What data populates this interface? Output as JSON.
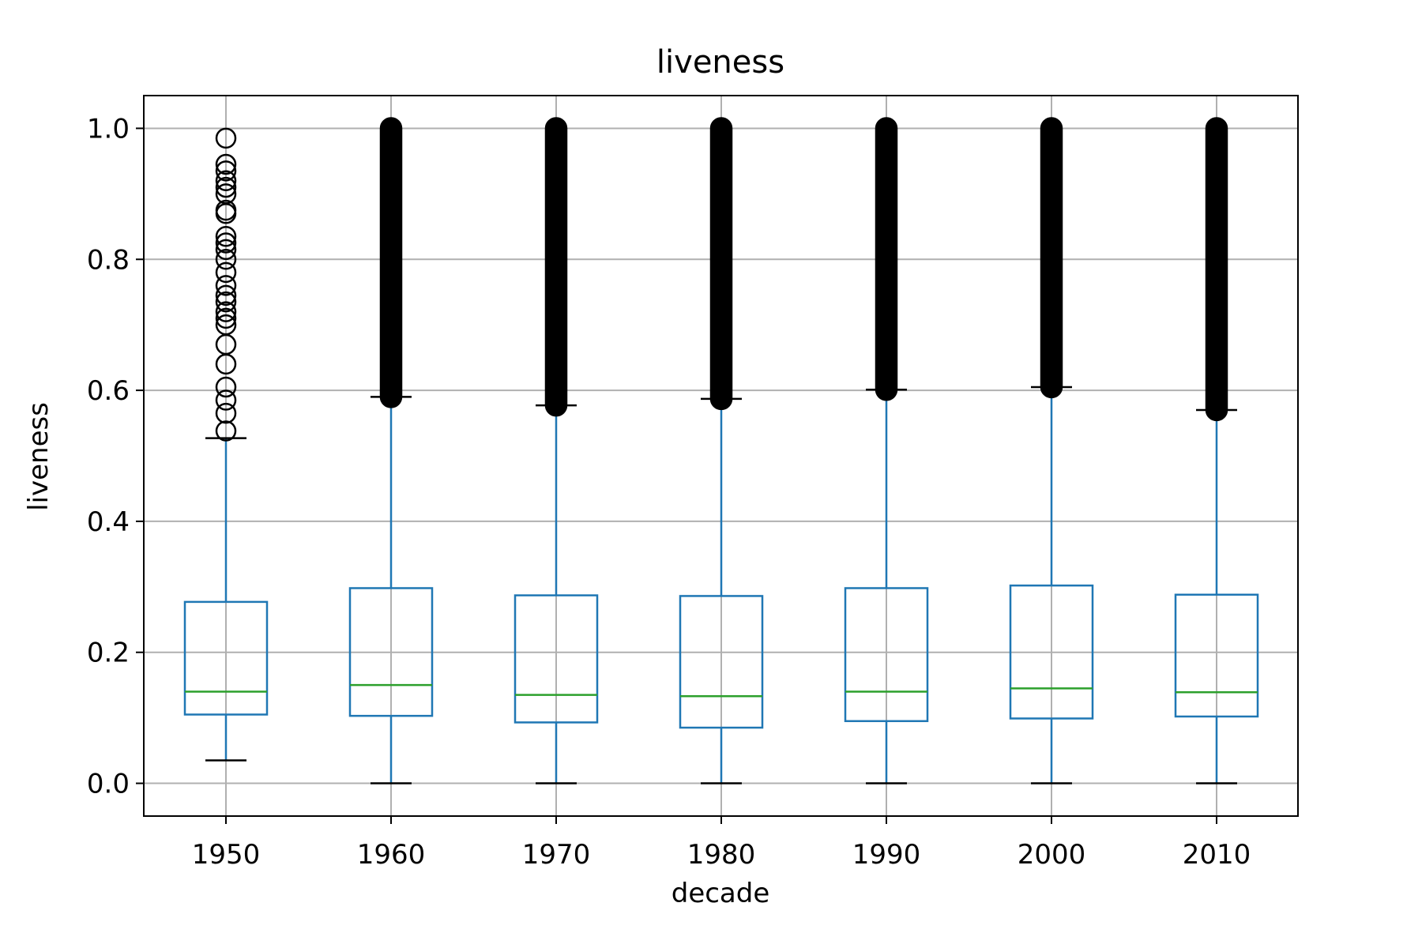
{
  "chart_data": {
    "type": "boxplot",
    "title": "liveness",
    "xlabel": "decade",
    "ylabel": "liveness",
    "ylim": [
      -0.05,
      1.05
    ],
    "yticks": [
      "0.0",
      "0.2",
      "0.4",
      "0.6",
      "0.8",
      "1.0"
    ],
    "categories": [
      "1950",
      "1960",
      "1970",
      "1980",
      "1990",
      "2000",
      "2010"
    ],
    "grid": true,
    "colors": {
      "box": "#1f77b4",
      "median": "#2ca02c",
      "whisker_cap": "#000000",
      "grid": "#b0b0b0",
      "flier": "#000000"
    },
    "boxes": [
      {
        "decade": "1950",
        "whislo": 0.035,
        "q1": 0.105,
        "median": 0.14,
        "q3": 0.277,
        "whishi": 0.527,
        "fliers": [
          0.538,
          0.565,
          0.585,
          0.605,
          0.64,
          0.67,
          0.7,
          0.71,
          0.72,
          0.735,
          0.745,
          0.76,
          0.78,
          0.8,
          0.815,
          0.825,
          0.835,
          0.87,
          0.875,
          0.9,
          0.91,
          0.92,
          0.935,
          0.945,
          0.985
        ],
        "flier_range": null
      },
      {
        "decade": "1960",
        "whislo": 0.0,
        "q1": 0.103,
        "median": 0.15,
        "q3": 0.298,
        "whishi": 0.59,
        "fliers": [],
        "flier_range": [
          0.59,
          1.0
        ]
      },
      {
        "decade": "1970",
        "whislo": 0.0,
        "q1": 0.093,
        "median": 0.135,
        "q3": 0.287,
        "whishi": 0.577,
        "fliers": [],
        "flier_range": [
          0.577,
          1.0
        ]
      },
      {
        "decade": "1980",
        "whislo": 0.0,
        "q1": 0.085,
        "median": 0.133,
        "q3": 0.286,
        "whishi": 0.587,
        "fliers": [],
        "flier_range": [
          0.587,
          1.0
        ]
      },
      {
        "decade": "1990",
        "whislo": 0.0,
        "q1": 0.095,
        "median": 0.14,
        "q3": 0.298,
        "whishi": 0.601,
        "fliers": [],
        "flier_range": [
          0.601,
          1.0
        ]
      },
      {
        "decade": "2000",
        "whislo": 0.0,
        "q1": 0.099,
        "median": 0.145,
        "q3": 0.302,
        "whishi": 0.605,
        "fliers": [],
        "flier_range": [
          0.605,
          1.0
        ]
      },
      {
        "decade": "2010",
        "whislo": 0.0,
        "q1": 0.102,
        "median": 0.139,
        "q3": 0.288,
        "whishi": 0.57,
        "fliers": [],
        "flier_range": [
          0.57,
          1.0
        ]
      }
    ]
  }
}
